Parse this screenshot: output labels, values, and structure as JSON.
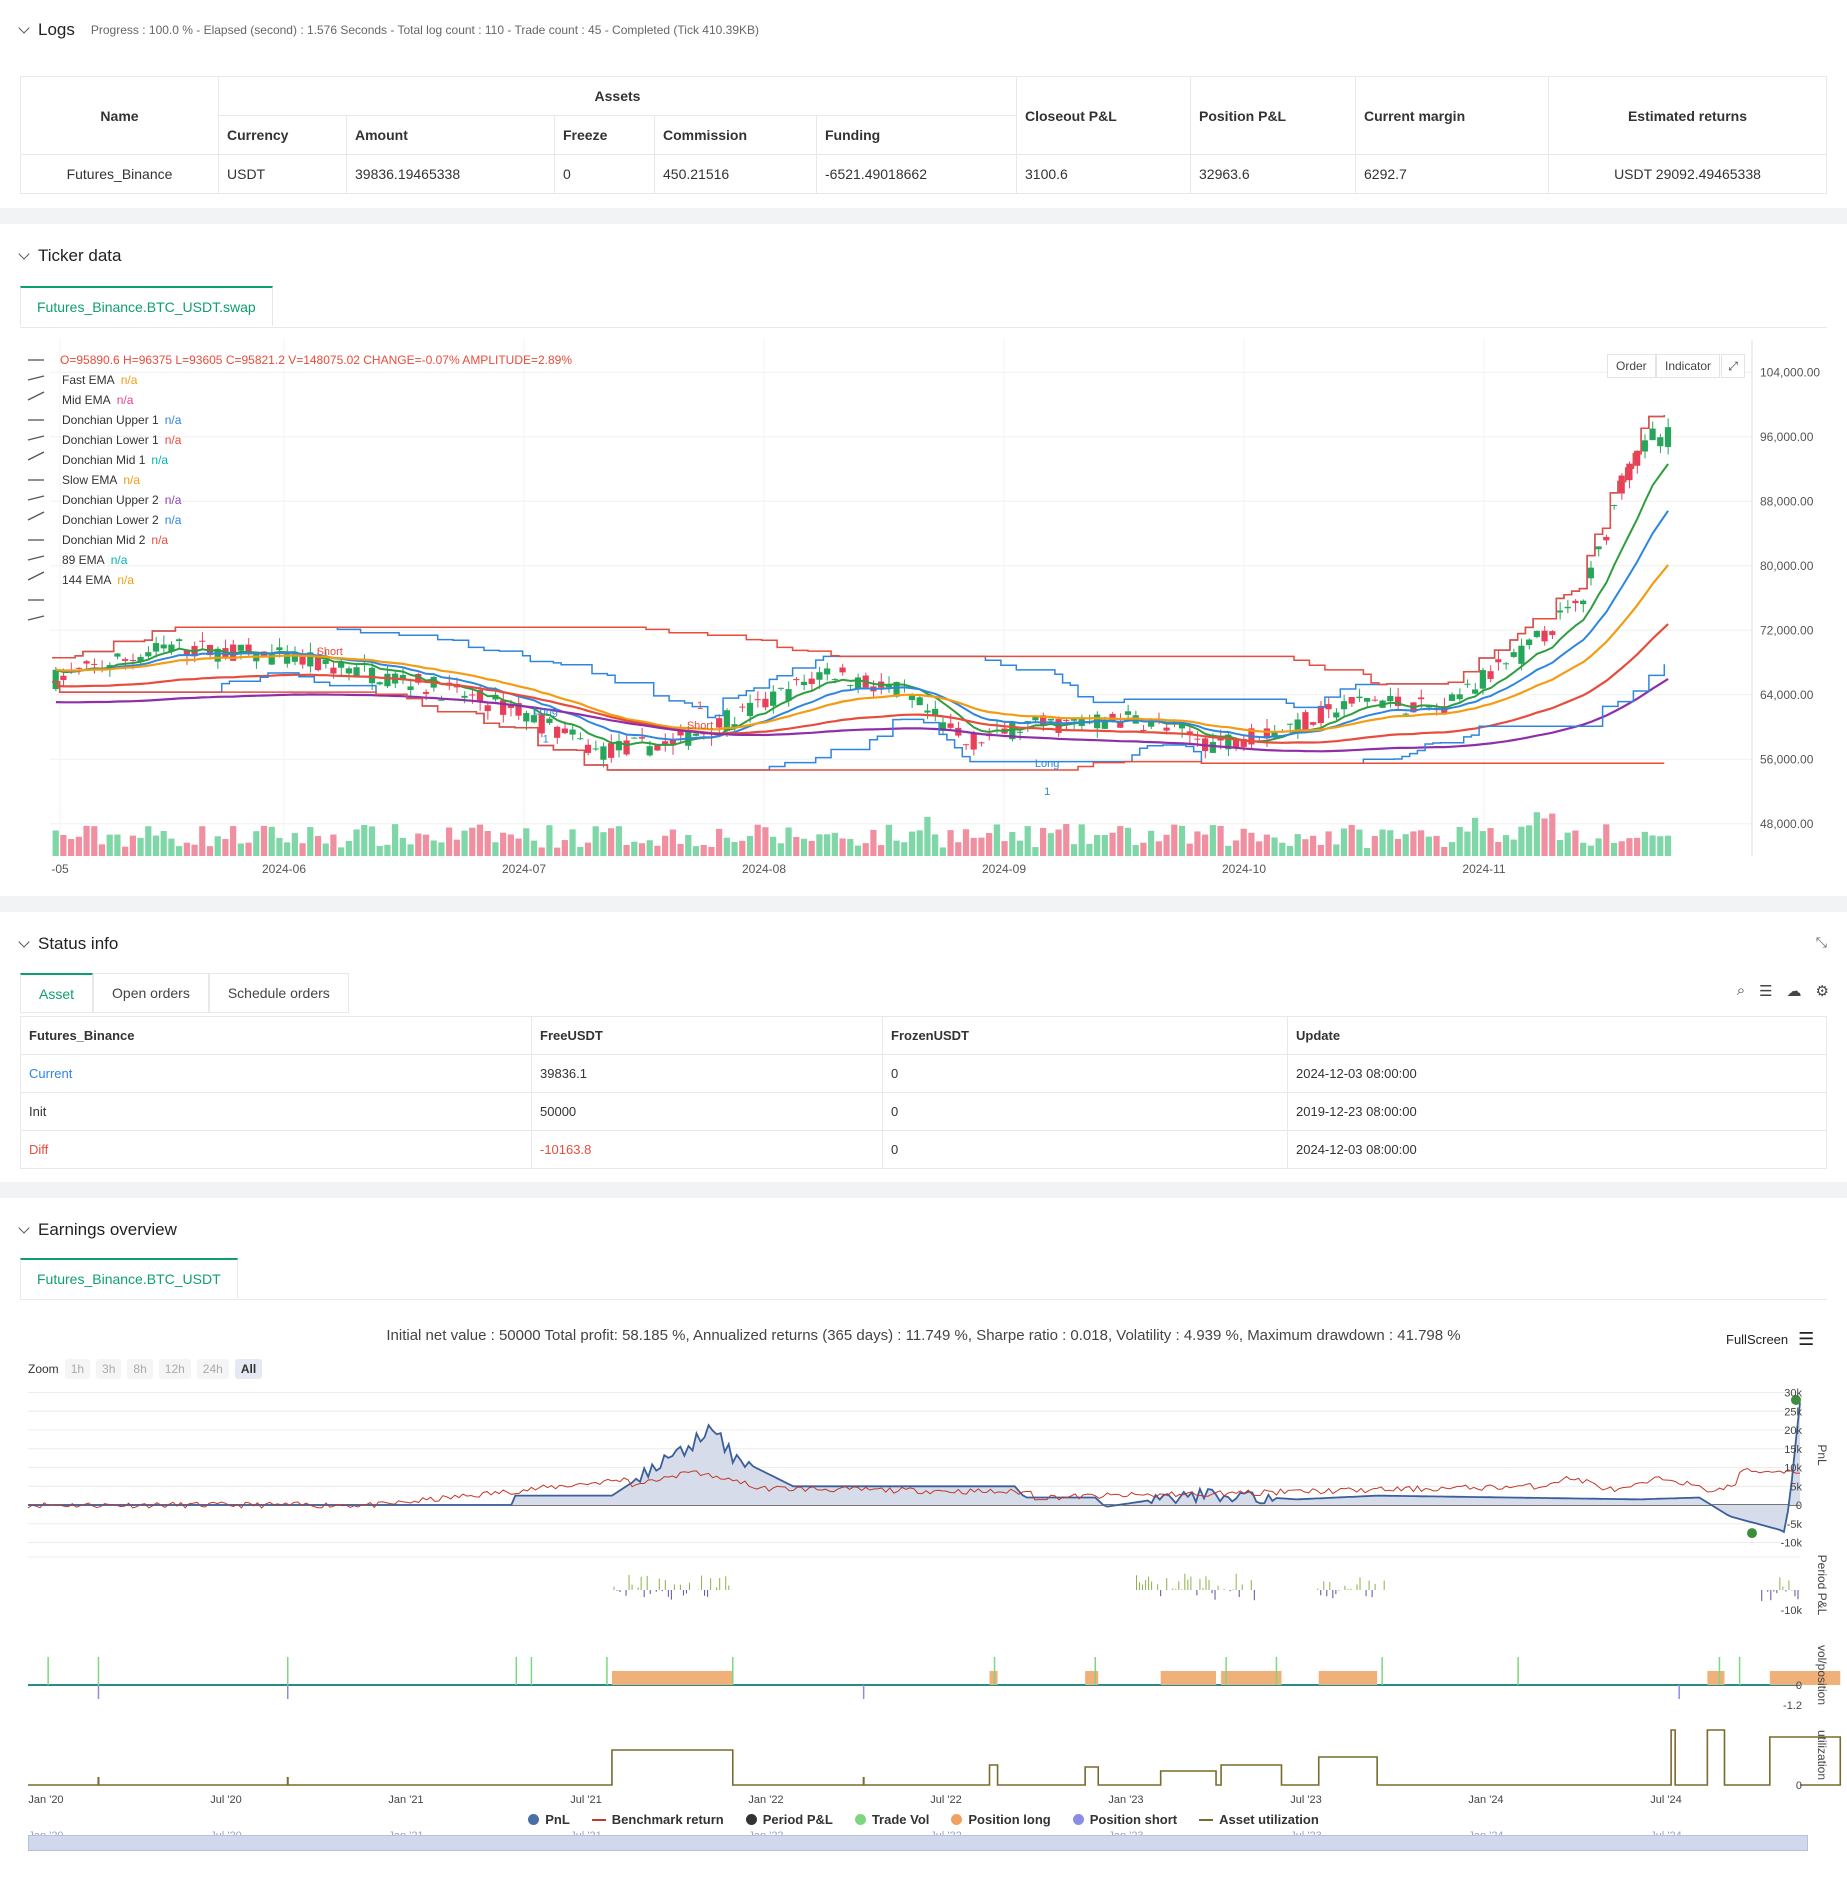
{
  "logs": {
    "title": "Logs",
    "summary": "Progress : 100.0 % - Elapsed (second) : 1.576  Seconds - Total log count : 110 - Trade count : 45 - Completed (Tick 410.39KB)"
  },
  "assets_table": {
    "h_name": "Name",
    "h_assets": "Assets",
    "h_currency": "Currency",
    "h_amount": "Amount",
    "h_freeze": "Freeze",
    "h_commission": "Commission",
    "h_funding": "Funding",
    "h_closeout": "Closeout P&L",
    "h_position": "Position P&L",
    "h_margin": "Current margin",
    "h_returns": "Estimated returns",
    "row": {
      "name": "Futures_Binance",
      "currency": "USDT",
      "amount": "39836.19465338",
      "freeze": "0",
      "commission": "450.21516",
      "funding": "-6521.49018662",
      "closeout": "3100.6",
      "position": "32963.6",
      "margin": "6292.7",
      "returns": "USDT 29092.49465338"
    }
  },
  "ticker": {
    "title": "Ticker data",
    "tab": "Futures_Binance.BTC_USDT.swap",
    "ohlc": "O=95890.6 H=96375 L=93605 C=95821.2 V=148075.02 CHANGE=-0.07% AMPLITUDE=2.89%",
    "order_btn": "Order",
    "indicator_btn": "Indicator",
    "indicators": [
      {
        "name": "Fast EMA",
        "val": "n/a",
        "color": "#f39c12"
      },
      {
        "name": "Mid EMA",
        "val": "n/a",
        "color": "#e84393"
      },
      {
        "name": "Donchian Upper 1",
        "val": "n/a",
        "color": "#2e86de"
      },
      {
        "name": "Donchian Lower 1",
        "val": "n/a",
        "color": "#e74c3c"
      },
      {
        "name": "Donchian Mid 1",
        "val": "n/a",
        "color": "#00b3b3"
      },
      {
        "name": "Slow EMA",
        "val": "n/a",
        "color": "#f39c12"
      },
      {
        "name": "Donchian Upper 2",
        "val": "n/a",
        "color": "#8e44ad"
      },
      {
        "name": "Donchian Lower 2",
        "val": "n/a",
        "color": "#2e86de"
      },
      {
        "name": "Donchian Mid 2",
        "val": "n/a",
        "color": "#e74c3c"
      },
      {
        "name": "89 EMA",
        "val": "n/a",
        "color": "#00b3b3"
      },
      {
        "name": "144 EMA",
        "val": "n/a",
        "color": "#f39c12"
      }
    ],
    "y_ticks": [
      "104,000.00",
      "96,000.00",
      "88,000.00",
      "80,000.00",
      "72,000.00",
      "64,000.00",
      "56,000.00",
      "48,000.00"
    ],
    "x_ticks": [
      "-05",
      "2024-06",
      "2024-07",
      "2024-08",
      "2024-09",
      "2024-10",
      "2024-11"
    ],
    "markers": [
      {
        "label": "Short"
      },
      {
        "label": "1"
      },
      {
        "label": "Short"
      },
      {
        "label": "Long"
      },
      {
        "label": "1"
      },
      {
        "label": "Long"
      },
      {
        "label": "1"
      }
    ]
  },
  "status": {
    "title": "Status info",
    "tabs": [
      "Asset",
      "Open orders",
      "Schedule orders"
    ],
    "cols": [
      "Futures_Binance",
      "FreeUSDT",
      "FrozenUSDT",
      "Update"
    ],
    "rows": [
      [
        "Current",
        "39836.1",
        "0",
        "2024-12-03 08:00:00"
      ],
      [
        "Init",
        "50000",
        "0",
        "2019-12-23 08:00:00"
      ],
      [
        "Diff",
        "-10163.8",
        "0",
        "2024-12-03 08:00:00"
      ]
    ]
  },
  "earnings": {
    "title": "Earnings overview",
    "tab": "Futures_Binance.BTC_USDT",
    "summary": "Initial net value : 50000  Total profit: 58.185 %, Annualized returns (365 days) : 11.749 %, Sharpe ratio : 0.018, Volatility : 4.939 %, Maximum drawdown : 41.798 %",
    "fullscreen": "FullScreen",
    "zoom_label": "Zoom",
    "zoom": [
      "1h",
      "3h",
      "8h",
      "12h",
      "24h",
      "All"
    ],
    "pnl_ticks": [
      "30k",
      "25k",
      "20k",
      "15k",
      "10k",
      "5k",
      "0",
      "-5k",
      "-10k"
    ],
    "pp_ticks": [
      "-10k"
    ],
    "vol_ticks": [
      "0",
      "-1.2"
    ],
    "util_ticks": [
      "0"
    ],
    "axis_titles": [
      "PnL",
      "Period P&L",
      "vol/position",
      "utilization"
    ],
    "x_ticks": [
      "Jan '20",
      "Jul '20",
      "Jan '21",
      "Jul '21",
      "Jan '22",
      "Jul '22",
      "Jan '23",
      "Jul '23",
      "Jan '24",
      "Jul '24"
    ],
    "legend": [
      {
        "name": "PnL",
        "color": "#4a6fa5",
        "type": "dot"
      },
      {
        "name": "Benchmark return",
        "color": "#c0392b",
        "type": "line"
      },
      {
        "name": "Period P&L",
        "color": "#333333",
        "type": "dot"
      },
      {
        "name": "Trade Vol",
        "color": "#7ed67e",
        "type": "dot"
      },
      {
        "name": "Position long",
        "color": "#f0a35e",
        "type": "dot"
      },
      {
        "name": "Position short",
        "color": "#8c8ce8",
        "type": "dot"
      },
      {
        "name": "Asset utilization",
        "color": "#7a6a2e",
        "type": "line"
      }
    ]
  }
}
